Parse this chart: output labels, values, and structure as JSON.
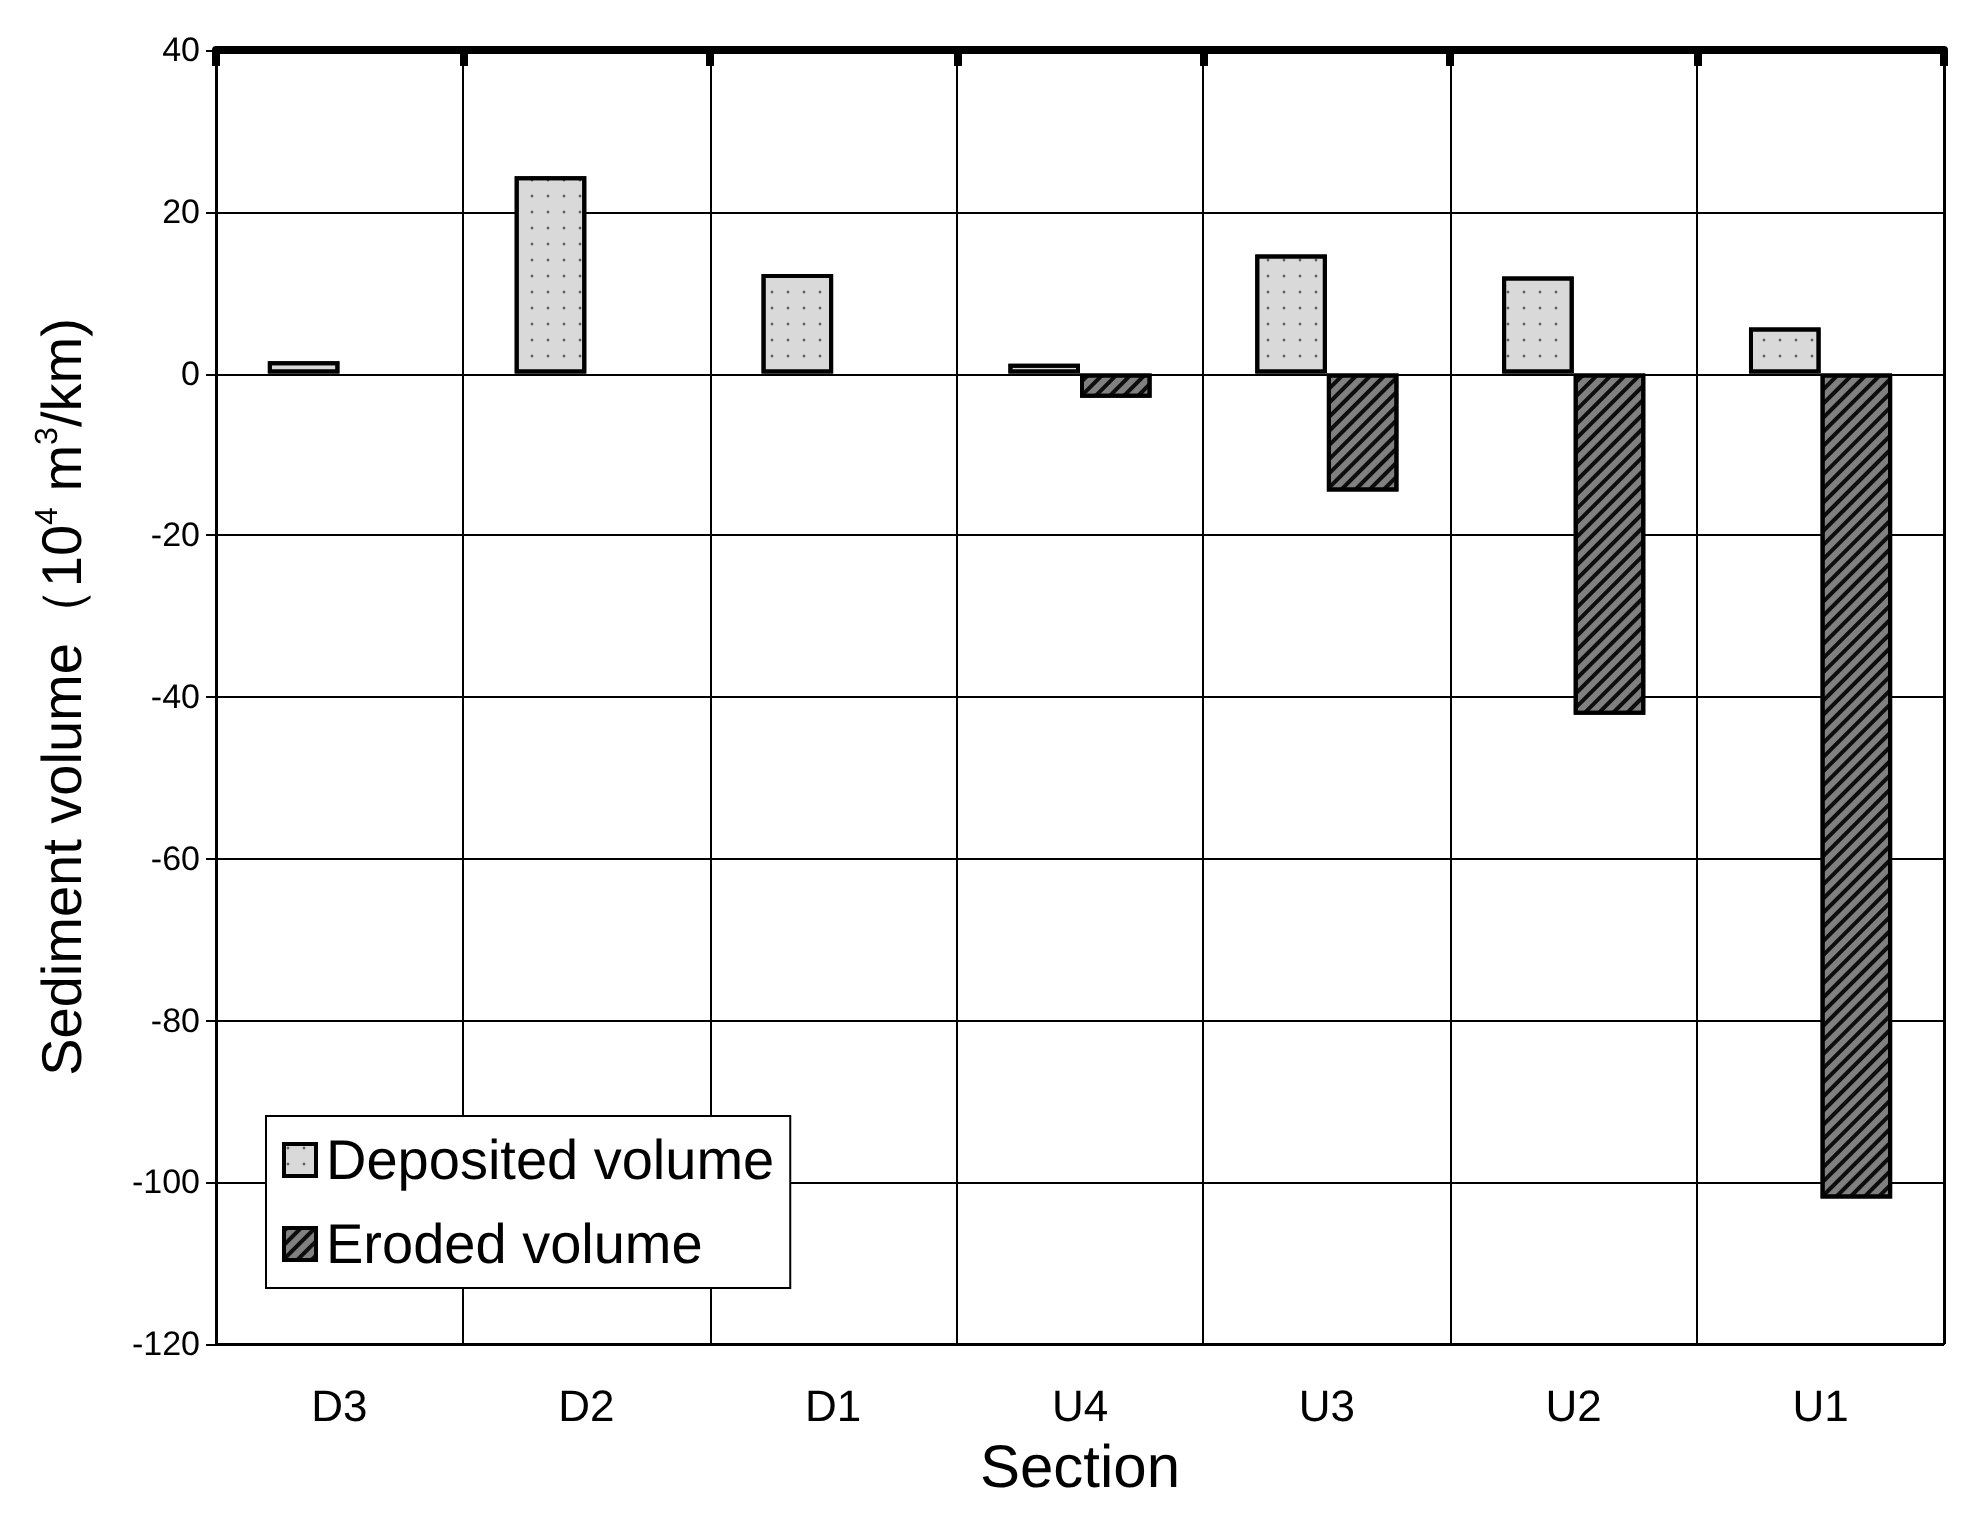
{
  "chart_data": {
    "type": "bar",
    "xlabel": "Section",
    "ylabel": "Sediment volume（10$^{4}$ m$^{3}$/km)",
    "categories": [
      "D3",
      "D2",
      "D1",
      "U4",
      "U3",
      "U2",
      "U1"
    ],
    "series": [
      {
        "name": "Deposited volume",
        "color": "#d9d9d9",
        "values": [
          1.5,
          24.4,
          12.3,
          1.2,
          14.7,
          12,
          5.7
        ]
      },
      {
        "name": "Eroded volume",
        "color": "#808080",
        "values": [
          null,
          null,
          null,
          -3,
          -14.6,
          -42.2,
          -102
        ]
      }
    ],
    "ylim": [
      -120,
      40
    ],
    "yticks": [
      -120,
      -100,
      -80,
      -60,
      -40,
      -20,
      0,
      20,
      40
    ],
    "grid": true,
    "legend": "bottom left"
  }
}
